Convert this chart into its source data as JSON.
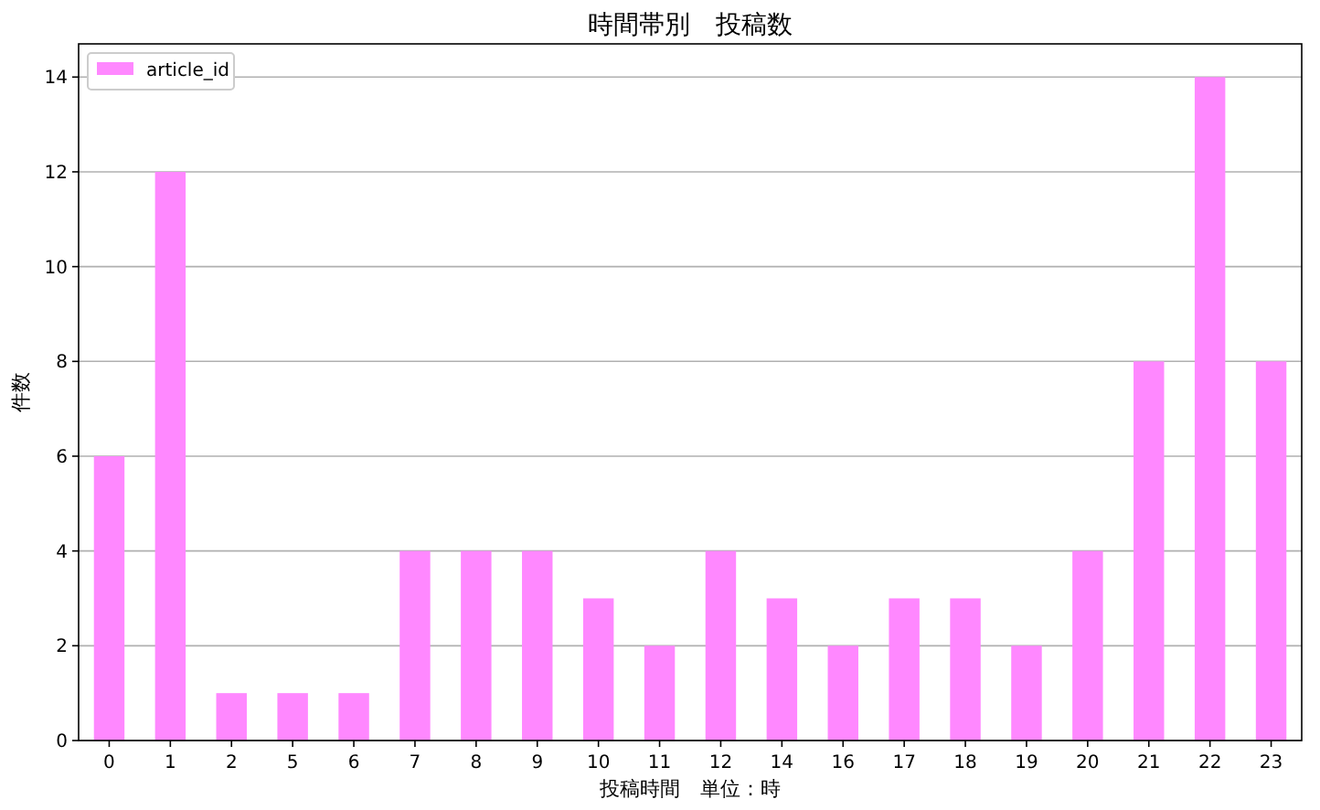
{
  "chart_data": {
    "type": "bar",
    "title": "時間帯別　投稿数",
    "xlabel": "投稿時間　単位：時",
    "ylabel": "件数",
    "categories": [
      "0",
      "1",
      "2",
      "5",
      "6",
      "7",
      "8",
      "9",
      "10",
      "11",
      "12",
      "14",
      "16",
      "17",
      "18",
      "19",
      "20",
      "21",
      "22",
      "23"
    ],
    "series": [
      {
        "name": "article_id",
        "color": "#ff88ff",
        "values": [
          6,
          12,
          1,
          1,
          1,
          4,
          4,
          4,
          3,
          2,
          4,
          3,
          2,
          3,
          3,
          2,
          4,
          8,
          14,
          8
        ]
      }
    ],
    "ylim": [
      0,
      14.7
    ],
    "yticks": [
      0,
      2,
      4,
      6,
      8,
      10,
      12,
      14
    ],
    "grid": "y",
    "legend": "top left"
  }
}
